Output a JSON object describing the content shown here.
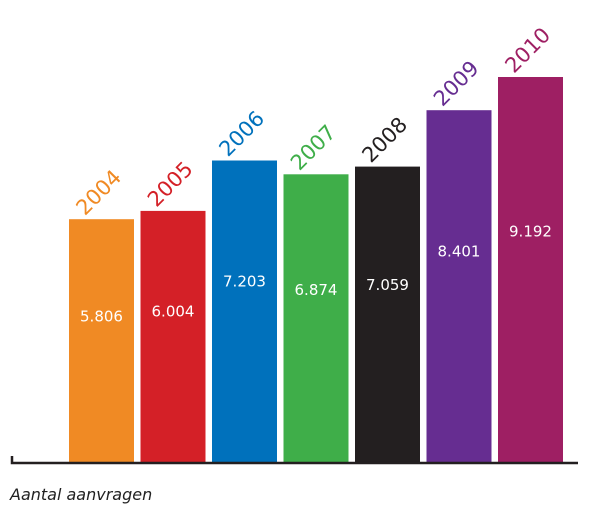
{
  "chart_data": {
    "type": "bar",
    "categories": [
      "2004",
      "2005",
      "2006",
      "2007",
      "2008",
      "2009",
      "2010"
    ],
    "values": [
      5806,
      6004,
      7203,
      6874,
      7059,
      8401,
      9192
    ],
    "value_labels": [
      "5.806",
      "6.004",
      "7.203",
      "6.874",
      "7.059",
      "8.401",
      "9.192"
    ],
    "colors": [
      "#f08a24",
      "#d42027",
      "#0071bc",
      "#3fae49",
      "#231f20",
      "#662d91",
      "#9e1f63"
    ],
    "xlabel": "Aantal aanvragen",
    "ylabel": "",
    "title": "",
    "ylim": [
      0,
      9800
    ],
    "grid": false,
    "legend": "none"
  }
}
